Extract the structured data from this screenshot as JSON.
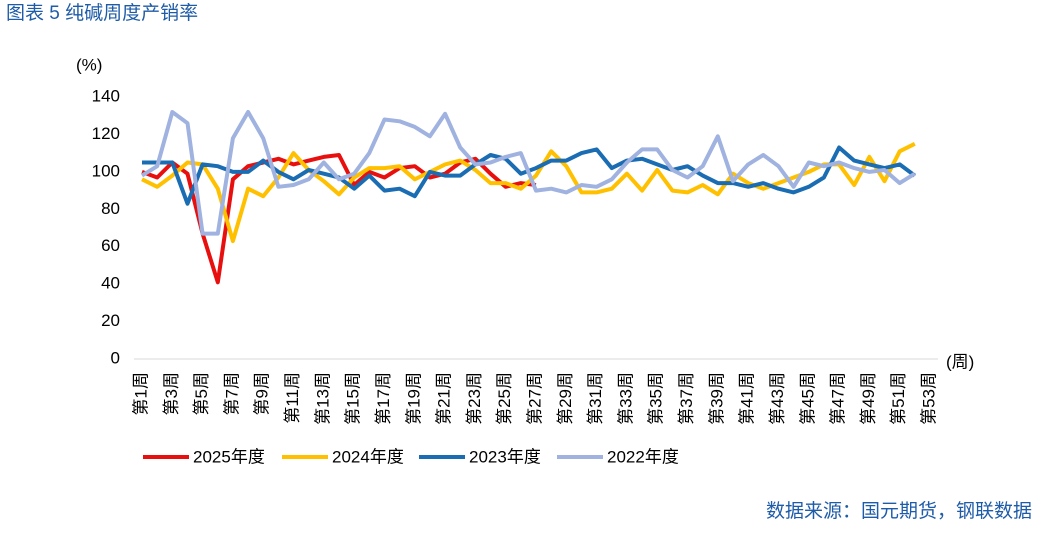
{
  "chart_data": {
    "type": "line",
    "title": "图表 5 纯碱周度产销率",
    "y_label": "(%)",
    "x_label": "(周)",
    "source": "数据来源：国元期货，钢联数据",
    "categories": [
      "第1周",
      null,
      "第3周",
      null,
      "第5周",
      null,
      "第7周",
      null,
      "第9周",
      null,
      "第11周",
      null,
      "第13周",
      null,
      "第15周",
      null,
      "第17周",
      null,
      "第19周",
      null,
      "第21周",
      null,
      "第23周",
      null,
      "第25周",
      null,
      "第27周",
      null,
      "第29周",
      null,
      "第31周",
      null,
      "第33周",
      null,
      "第35周",
      null,
      "第37周",
      null,
      "第39周",
      null,
      "第41周",
      null,
      "第43周",
      null,
      "第45周",
      null,
      "第47周",
      null,
      "第49周",
      null,
      "第51周",
      null,
      "第53周"
    ],
    "ylim": [
      0,
      140
    ],
    "yticks": [
      0,
      20,
      40,
      60,
      80,
      100,
      120,
      140
    ],
    "legend": "bottom",
    "series": [
      {
        "name": "2025年度",
        "color": "#e8100f",
        "values": [
          100,
          97,
          105,
          99,
          67,
          41,
          96,
          103,
          105,
          107,
          104,
          106,
          108,
          109,
          93,
          100,
          97,
          102,
          103,
          97,
          99,
          105,
          107,
          99,
          92,
          94,
          93,
          null,
          null,
          null,
          null,
          null,
          null,
          null,
          null,
          null,
          null,
          null,
          null,
          null,
          null,
          null,
          null,
          null,
          null,
          null,
          null,
          null,
          null,
          null,
          null,
          null,
          null
        ]
      },
      {
        "name": "2024年度",
        "color": "#ffc000",
        "values": [
          96,
          92,
          98,
          105,
          104,
          91,
          63,
          91,
          87,
          97,
          110,
          101,
          95,
          88,
          97,
          102,
          102,
          103,
          96,
          100,
          104,
          106,
          101,
          94,
          94,
          91,
          98,
          111,
          103,
          89,
          89,
          91,
          99,
          90,
          101,
          90,
          89,
          93,
          88,
          99,
          94,
          91,
          94,
          97,
          100,
          104,
          104,
          93,
          108,
          95,
          111,
          115,
          null
        ]
      },
      {
        "name": "2023年度",
        "color": "#1a6cb3",
        "values": [
          105,
          105,
          105,
          83,
          104,
          103,
          100,
          100,
          106,
          100,
          96,
          101,
          99,
          97,
          91,
          98,
          90,
          91,
          87,
          100,
          98,
          98,
          104,
          109,
          107,
          99,
          102,
          106,
          106,
          110,
          112,
          102,
          106,
          107,
          104,
          101,
          103,
          98,
          94,
          94,
          92,
          94,
          91,
          89,
          92,
          97,
          113,
          106,
          104,
          102,
          104,
          98,
          null
        ]
      },
      {
        "name": "2022年度",
        "color": "#9fb2e0",
        "values": [
          98,
          103,
          132,
          126,
          67,
          67,
          118,
          132,
          118,
          92,
          93,
          96,
          105,
          96,
          99,
          110,
          128,
          127,
          124,
          119,
          131,
          113,
          104,
          105,
          108,
          110,
          90,
          91,
          89,
          93,
          92,
          96,
          105,
          112,
          112,
          101,
          97,
          103,
          119,
          95,
          104,
          109,
          103,
          92,
          105,
          103,
          105,
          102,
          100,
          101,
          94,
          99,
          null
        ]
      }
    ]
  }
}
